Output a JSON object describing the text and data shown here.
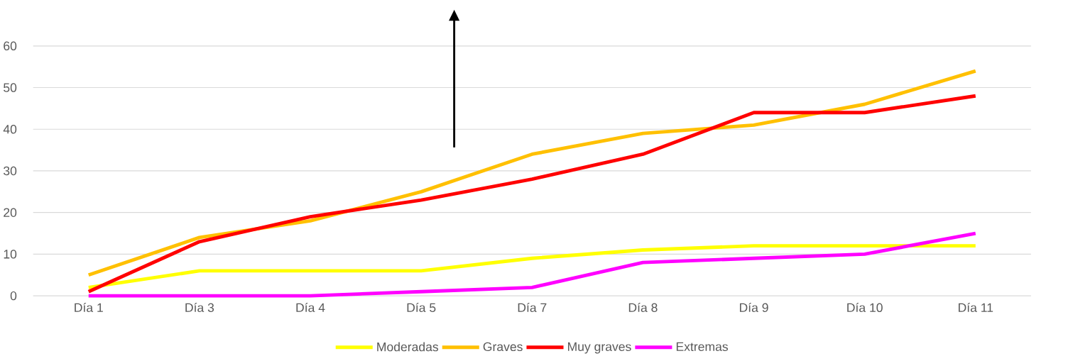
{
  "chart_data": {
    "type": "line",
    "categories": [
      "Día 1",
      "Día 3",
      "Día 4",
      "Día 5",
      "Día 7",
      "Día 8",
      "Día 9",
      "Día 10",
      "Día 11"
    ],
    "series": [
      {
        "name": "Moderadas",
        "color": "#ffff00",
        "values": [
          2,
          6,
          6,
          6,
          9,
          11,
          12,
          12,
          12
        ]
      },
      {
        "name": "Graves",
        "color": "#ffc000",
        "values": [
          5,
          14,
          18,
          25,
          34,
          39,
          41,
          46,
          54
        ]
      },
      {
        "name": "Muy graves",
        "color": "#ff0000",
        "values": [
          1,
          13,
          19,
          23,
          28,
          34,
          44,
          44,
          48
        ]
      },
      {
        "name": "Extremas",
        "color": "#ff00ff",
        "values": [
          0,
          0,
          0,
          1,
          2,
          8,
          9,
          10,
          15
        ]
      }
    ],
    "ylim": [
      0,
      60
    ],
    "yticks": [
      0,
      10,
      20,
      30,
      40,
      50,
      60
    ],
    "grid": "y",
    "legend": "bottom",
    "line_style": "solid"
  }
}
